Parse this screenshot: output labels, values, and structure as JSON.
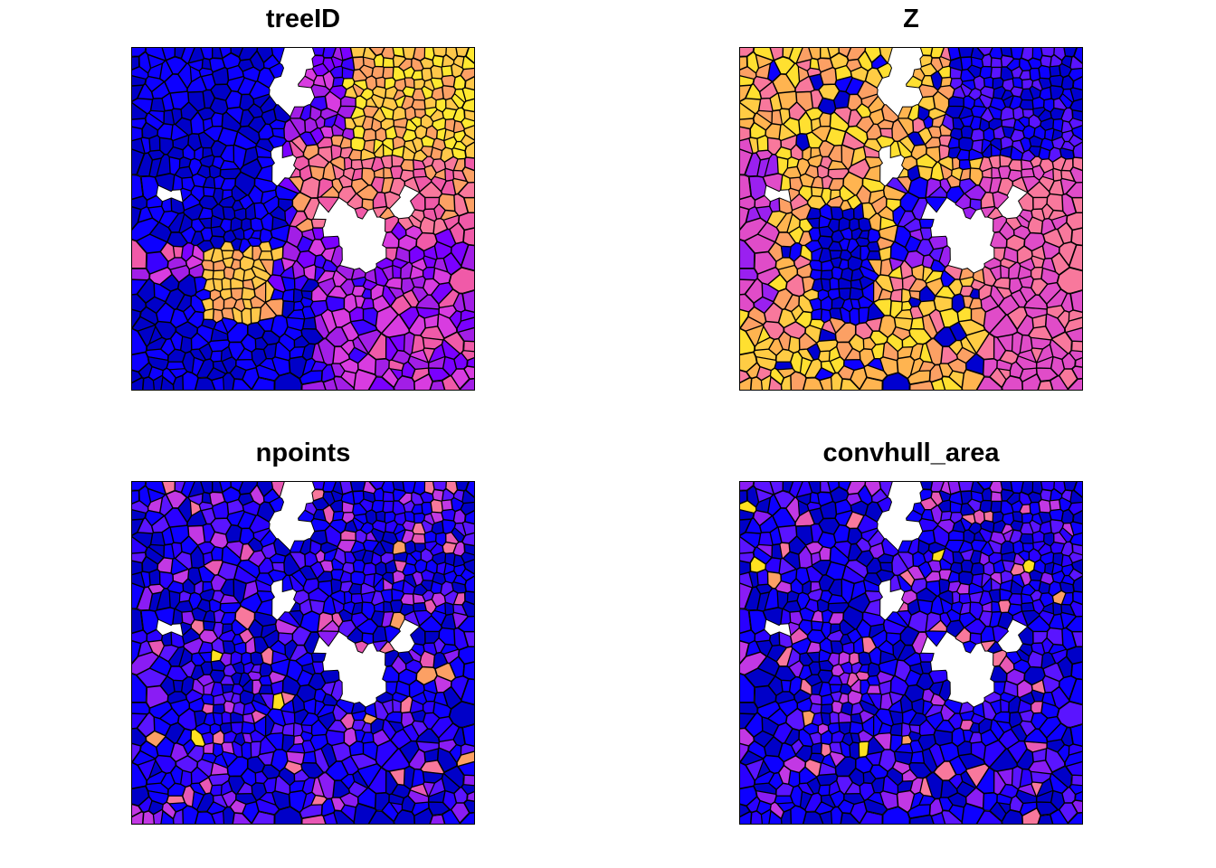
{
  "panels": [
    {
      "id": "treeID",
      "title": "treeID",
      "attribute": "treeID",
      "palette": [
        "#0d00ff",
        "#0000c8",
        "#3a00ff",
        "#7a00ff",
        "#a21ee6",
        "#d83ce0",
        "#f05aa8",
        "#f8789c",
        "#fca064",
        "#ffc84a",
        "#ffe830"
      ]
    },
    {
      "id": "Z",
      "title": "Z",
      "attribute": "Z",
      "palette": [
        "#0000d0",
        "#0d00ff",
        "#5a14ff",
        "#9a20f0",
        "#e04cc8",
        "#f8789c",
        "#fca064",
        "#ffb450",
        "#ffcc44",
        "#ffe030"
      ]
    },
    {
      "id": "npoints",
      "title": "npoints",
      "attribute": "npoints",
      "palette": [
        "#0000c8",
        "#0d00ff",
        "#2a00ff",
        "#5a14ff",
        "#8a1cf4",
        "#c238e4",
        "#e858b4",
        "#f8789c",
        "#fca064",
        "#ffe020"
      ]
    },
    {
      "id": "convhull_area",
      "title": "convhull_area",
      "attribute": "convhull_area",
      "palette": [
        "#0000c8",
        "#0d00ff",
        "#2a00ff",
        "#5a14ff",
        "#8a1cf4",
        "#c238e4",
        "#e858b4",
        "#f8789c",
        "#fca064",
        "#ffe020"
      ]
    }
  ],
  "colors": {
    "outline": "#000000",
    "gap": "#ffffff",
    "background": "#ffffff"
  }
}
